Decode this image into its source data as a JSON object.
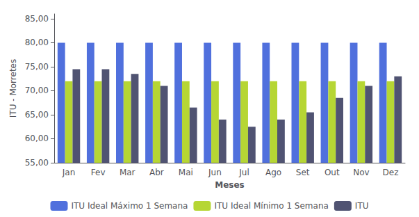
{
  "chart_data": {
    "type": "bar",
    "xlabel": "Meses",
    "ylabel": "ITU - Morretes",
    "categories": [
      "Jan",
      "Fev",
      "Mar",
      "Abr",
      "Mai",
      "Jun",
      "Jul",
      "Ago",
      "Set",
      "Out",
      "Nov",
      "Dez"
    ],
    "series": [
      {
        "name": "ITU Ideal Máximo 1 Semana",
        "values": [
          80,
          80,
          80,
          80,
          80,
          80,
          80,
          80,
          80,
          80,
          80,
          80
        ]
      },
      {
        "name": "ITU Ideal Mínimo 1 Semana",
        "values": [
          72,
          72,
          72,
          72,
          72,
          72,
          72,
          72,
          72,
          72,
          72,
          72
        ]
      },
      {
        "name": "ITU",
        "values": [
          74.5,
          74.5,
          73.5,
          71.0,
          66.5,
          64.0,
          62.5,
          64.0,
          65.5,
          68.5,
          71.0,
          73.0
        ]
      }
    ],
    "ylim": [
      55,
      86
    ],
    "yticks": [
      {
        "value": 55.0,
        "label": "55,00"
      },
      {
        "value": 60.0,
        "label": "60,00"
      },
      {
        "value": 65.0,
        "label": "65,00"
      },
      {
        "value": 70.0,
        "label": "70,00"
      },
      {
        "value": 75.0,
        "label": "75,00"
      },
      {
        "value": 80.0,
        "label": "80,00"
      },
      {
        "value": 85.0,
        "label": "85,00"
      }
    ],
    "grid": false,
    "legend": "bottom"
  }
}
